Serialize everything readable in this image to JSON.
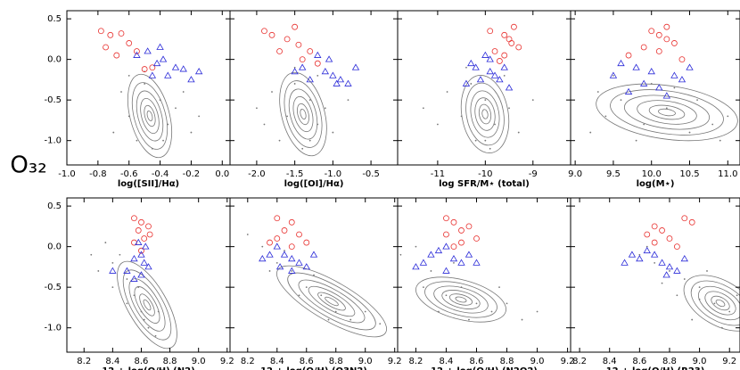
{
  "y_label": "O₃₂",
  "ylim": [
    -1.3,
    0.6
  ],
  "yticks": [
    0.5,
    {
      "value": 0,
      "label": "0.0"
    },
    -0.5,
    {
      "value": -1,
      "label": "-1.0"
    }
  ],
  "chart_data": [
    {
      "type": "scatter",
      "x_label": "log([SII]/Hα)",
      "xlim": [
        -1.0,
        0.05
      ],
      "xticks": [
        {
          "value": -1,
          "label": "-1.0"
        },
        -0.8,
        -0.6,
        -0.4,
        -0.2,
        {
          "value": 0,
          "label": "0.0"
        }
      ],
      "series": [
        {
          "marker": "dot",
          "color": "#777777",
          "x": [
            -0.5,
            -0.4,
            -0.35,
            -0.6,
            -0.55,
            -0.45,
            -0.3,
            -0.65,
            -0.2,
            -0.7,
            -0.25,
            -0.5,
            -0.38,
            -0.6,
            -0.15
          ],
          "values": [
            -0.3,
            -0.5,
            -0.8,
            -0.7,
            -1.0,
            -1.1,
            -0.6,
            -0.4,
            -0.9,
            -0.9,
            -0.4,
            -0.15,
            -1.0,
            -0.2,
            -0.7
          ]
        },
        {
          "marker": "circle",
          "color": "#e8312f",
          "x": [
            -0.78,
            -0.72,
            -0.65,
            -0.6,
            -0.75,
            -0.55,
            -0.68,
            -0.5,
            -0.45
          ],
          "values": [
            0.35,
            0.3,
            0.32,
            0.2,
            0.15,
            0.1,
            0.05,
            -0.12,
            -0.1
          ]
        },
        {
          "marker": "triangle",
          "color": "#2a2ad8",
          "x": [
            -0.55,
            -0.48,
            -0.42,
            -0.38,
            -0.3,
            -0.25,
            -0.2,
            -0.35,
            -0.45,
            -0.15,
            -0.4
          ],
          "values": [
            0.05,
            0.1,
            -0.05,
            0.0,
            -0.1,
            -0.12,
            -0.25,
            -0.2,
            -0.2,
            -0.15,
            0.15
          ]
        }
      ]
    },
    {
      "type": "scatter",
      "x_label": "log([OI]/Hα)",
      "xlim": [
        -2.35,
        -0.15
      ],
      "xticks": [
        {
          "value": -2,
          "label": "-2.0"
        },
        -1.5,
        {
          "value": -1,
          "label": "-1.0"
        },
        -0.5
      ],
      "series": [
        {
          "marker": "dot",
          "color": "#777777",
          "x": [
            -1.5,
            -1.3,
            -1.2,
            -1.6,
            -1.7,
            -1.4,
            -1.1,
            -1.8,
            -1.0,
            -1.9,
            -1.2,
            -1.5,
            -1.3,
            -0.8,
            -2.0
          ],
          "values": [
            -0.3,
            -0.5,
            -0.8,
            -0.7,
            -1.0,
            -1.1,
            -0.6,
            -0.4,
            -0.9,
            -0.8,
            -0.2,
            -0.1,
            -1.0,
            -0.5,
            -0.6
          ]
        },
        {
          "marker": "circle",
          "color": "#e8312f",
          "x": [
            -1.9,
            -1.8,
            -1.6,
            -1.5,
            -1.7,
            -1.4,
            -1.3,
            -1.2,
            -1.45
          ],
          "values": [
            0.35,
            0.3,
            0.25,
            0.4,
            0.1,
            0.0,
            0.1,
            -0.05,
            0.18
          ]
        },
        {
          "marker": "triangle",
          "color": "#2a2ad8",
          "x": [
            -1.4,
            -1.2,
            -1.1,
            -1.0,
            -0.9,
            -0.8,
            -0.7,
            -1.3,
            -1.05,
            -0.95,
            -1.5
          ],
          "values": [
            -0.1,
            0.05,
            -0.15,
            -0.2,
            -0.25,
            -0.3,
            -0.1,
            -0.25,
            0.0,
            -0.3,
            -0.15
          ]
        }
      ]
    },
    {
      "type": "scatter",
      "x_label": "log SFR/M⋆ (total)",
      "xlim": [
        -11.84,
        -8.21
      ],
      "xticks": [
        -11,
        -10,
        -9
      ],
      "series": [
        {
          "marker": "dot",
          "color": "#777777",
          "x": [
            -10.3,
            -10,
            -9.8,
            -10.5,
            -10.2,
            -9.9,
            -9.5,
            -10.8,
            -9.3,
            -11,
            -9.6,
            -10.4,
            -10,
            -9,
            -11.3
          ],
          "values": [
            -0.3,
            -0.5,
            -0.8,
            -0.7,
            -1.0,
            -1.1,
            -0.6,
            -0.4,
            -0.9,
            -0.8,
            -0.2,
            -0.1,
            -1.0,
            -0.5,
            -0.6
          ]
        },
        {
          "marker": "circle",
          "color": "#e8312f",
          "x": [
            -9.9,
            -9.6,
            -9.5,
            -9.4,
            -9.8,
            -9.6,
            -9.3,
            -9.7,
            -9.45
          ],
          "values": [
            0.35,
            0.3,
            0.25,
            0.4,
            0.1,
            0.05,
            0.15,
            -0.02,
            0.2
          ]
        },
        {
          "marker": "triangle",
          "color": "#2a2ad8",
          "x": [
            -10.2,
            -10.0,
            -9.9,
            -9.8,
            -9.7,
            -9.6,
            -10.4,
            -10.1,
            -9.9,
            -9.5,
            -10.3
          ],
          "values": [
            -0.1,
            0.05,
            -0.15,
            -0.2,
            -0.25,
            -0.1,
            -0.3,
            -0.25,
            0.0,
            -0.35,
            -0.05
          ]
        }
      ]
    },
    {
      "type": "scatter",
      "x_label": "log(M⋆)",
      "xlim": [
        8.94,
        11.16
      ],
      "xticks": [
        {
          "value": 9,
          "label": "9.0"
        },
        9.5,
        {
          "value": 10,
          "label": "10.0"
        },
        10.5,
        {
          "value": 11,
          "label": "11.0"
        }
      ],
      "series": [
        {
          "marker": "dot",
          "color": "#777777",
          "x": [
            9.3,
            9.6,
            9.9,
            10.2,
            10.5,
            10.8,
            11.0,
            9.4,
            10.0,
            10.6,
            9.2,
            9.8,
            10.9,
            10.3,
            9.5
          ],
          "values": [
            -0.4,
            -0.5,
            -0.8,
            -0.6,
            -0.9,
            -0.8,
            -0.7,
            -0.7,
            -0.3,
            -0.5,
            -0.9,
            -1.0,
            -1.0,
            -0.35,
            -0.2
          ]
        },
        {
          "marker": "circle",
          "color": "#e8312f",
          "x": [
            10.0,
            10.1,
            10.2,
            10.3,
            9.9,
            10.1,
            9.7,
            10.4,
            10.2
          ],
          "values": [
            0.35,
            0.3,
            0.4,
            0.2,
            0.15,
            0.1,
            0.05,
            0.0,
            0.25
          ]
        },
        {
          "marker": "triangle",
          "color": "#2a2ad8",
          "x": [
            9.6,
            9.8,
            10.0,
            10.3,
            9.9,
            10.1,
            10.4,
            10.5,
            9.7,
            10.2,
            9.5
          ],
          "values": [
            -0.05,
            -0.1,
            -0.15,
            -0.2,
            -0.3,
            -0.35,
            -0.25,
            -0.1,
            -0.4,
            -0.45,
            -0.2
          ]
        }
      ]
    },
    {
      "type": "scatter",
      "x_label": "12 + log(O/H) (N2)",
      "xlim": [
        8.08,
        9.22
      ],
      "xticks": [
        8.2,
        8.4,
        8.6,
        8.8,
        {
          "value": 9,
          "label": "9.0"
        },
        9.2
      ],
      "series": [
        {
          "marker": "dot",
          "color": "#777777",
          "x": [
            8.4,
            8.5,
            8.55,
            8.6,
            8.65,
            8.7,
            8.45,
            8.35,
            8.5,
            8.62,
            8.3,
            8.72,
            8.58,
            8.4,
            8.25
          ],
          "values": [
            -0.2,
            -0.4,
            -0.6,
            -0.8,
            -1.0,
            -1.1,
            -0.1,
            0.05,
            -0.7,
            -0.9,
            -0.3,
            -0.8,
            -0.5,
            -0.5,
            -0.1
          ]
        },
        {
          "marker": "circle",
          "color": "#e8312f",
          "x": [
            8.55,
            8.6,
            8.65,
            8.58,
            8.62,
            8.55,
            8.6,
            8.66
          ],
          "values": [
            0.35,
            0.3,
            0.25,
            0.2,
            0.1,
            0.05,
            -0.05,
            0.15
          ]
        },
        {
          "marker": "triangle",
          "color": "#2a2ad8",
          "x": [
            8.58,
            8.6,
            8.62,
            8.55,
            8.65,
            8.5,
            8.6,
            8.63,
            8.4,
            8.55
          ],
          "values": [
            0.05,
            -0.1,
            -0.2,
            -0.15,
            -0.25,
            -0.3,
            -0.35,
            0.0,
            -0.3,
            -0.4
          ]
        }
      ]
    },
    {
      "type": "scatter",
      "x_label": "12 + log(O/H) (O3N2)",
      "xlim": [
        8.08,
        9.22
      ],
      "xticks": [
        8.2,
        8.4,
        8.6,
        8.8,
        {
          "value": 9,
          "label": "9.0"
        },
        9.2
      ],
      "series": [
        {
          "marker": "dot",
          "color": "#777777",
          "x": [
            8.2,
            8.3,
            8.4,
            8.5,
            8.6,
            8.7,
            8.8,
            8.9,
            8.35,
            8.55,
            8.75,
            9.0,
            8.45,
            8.65,
            9.1
          ],
          "values": [
            0.15,
            0.0,
            -0.2,
            -0.3,
            -0.5,
            -0.6,
            -0.8,
            -0.9,
            -0.3,
            -0.6,
            -0.9,
            -0.8,
            -0.05,
            -0.35,
            -0.95
          ]
        },
        {
          "marker": "circle",
          "color": "#e8312f",
          "x": [
            8.4,
            8.5,
            8.45,
            8.55,
            8.4,
            8.6,
            8.5,
            8.35
          ],
          "values": [
            0.35,
            0.3,
            0.2,
            0.15,
            0.1,
            0.05,
            0.0,
            0.05
          ]
        },
        {
          "marker": "triangle",
          "color": "#2a2ad8",
          "x": [
            8.4,
            8.45,
            8.5,
            8.35,
            8.55,
            8.6,
            8.3,
            8.5,
            8.65,
            8.42
          ],
          "values": [
            0.0,
            -0.1,
            -0.15,
            -0.1,
            -0.2,
            -0.25,
            -0.15,
            -0.3,
            -0.1,
            -0.25
          ]
        }
      ]
    },
    {
      "type": "scatter",
      "x_label": "12 + log(O/H) (N2O2)",
      "xlim": [
        8.08,
        9.22
      ],
      "xticks": [
        8.2,
        8.4,
        8.6,
        8.8,
        {
          "value": 9,
          "label": "9.0"
        },
        9.2
      ],
      "series": [
        {
          "marker": "dot",
          "color": "#777777",
          "x": [
            8.1,
            8.2,
            8.3,
            8.4,
            8.5,
            8.6,
            8.7,
            8.8,
            8.9,
            8.25,
            8.45,
            8.55,
            8.75,
            8.35,
            9.0
          ],
          "values": [
            -0.1,
            0.0,
            -0.3,
            -0.6,
            -0.5,
            -0.7,
            -0.8,
            -0.7,
            -0.9,
            -0.5,
            -0.2,
            -0.9,
            -0.5,
            -0.8,
            -0.8
          ]
        },
        {
          "marker": "circle",
          "color": "#e8312f",
          "x": [
            8.4,
            8.45,
            8.5,
            8.55,
            8.4,
            8.6,
            8.5,
            8.45
          ],
          "values": [
            0.35,
            0.3,
            0.2,
            0.25,
            0.15,
            0.1,
            0.05,
            0.0
          ]
        },
        {
          "marker": "triangle",
          "color": "#2a2ad8",
          "x": [
            8.3,
            8.35,
            8.4,
            8.45,
            8.25,
            8.5,
            8.2,
            8.55,
            8.6,
            8.4
          ],
          "values": [
            -0.1,
            -0.05,
            0.0,
            -0.15,
            -0.2,
            -0.2,
            -0.25,
            -0.1,
            -0.2,
            -0.3
          ]
        }
      ]
    },
    {
      "type": "scatter",
      "x_label": "12 + log(O/H) (R23)",
      "xlim": [
        8.14,
        9.27
      ],
      "xticks": [
        8.2,
        8.4,
        8.6,
        8.8,
        {
          "value": 9,
          "label": "9.0"
        },
        9.2
      ],
      "series": [
        {
          "marker": "dot",
          "color": "#777777",
          "x": [
            8.8,
            8.9,
            9.0,
            9.1,
            9.2,
            8.7,
            8.95,
            9.05,
            8.85,
            9.15,
            8.6,
            9.25,
            8.75,
            9.0,
            8.65
          ],
          "values": [
            -0.3,
            -0.4,
            -0.5,
            -0.7,
            -0.8,
            -0.2,
            -0.9,
            -0.3,
            -0.6,
            -1.0,
            -0.1,
            -0.6,
            -0.45,
            -0.65,
            0.0
          ]
        },
        {
          "marker": "circle",
          "color": "#e8312f",
          "x": [
            8.9,
            8.95,
            8.7,
            8.65,
            8.75,
            8.8,
            8.7,
            8.85
          ],
          "values": [
            0.35,
            0.3,
            0.25,
            0.15,
            0.2,
            0.1,
            0.05,
            0.0
          ]
        },
        {
          "marker": "triangle",
          "color": "#2a2ad8",
          "x": [
            8.5,
            8.55,
            8.6,
            8.7,
            8.75,
            8.8,
            8.85,
            8.65,
            8.9,
            8.78
          ],
          "values": [
            -0.2,
            -0.1,
            -0.15,
            -0.1,
            -0.2,
            -0.25,
            -0.3,
            -0.05,
            -0.15,
            -0.35
          ]
        }
      ]
    }
  ]
}
